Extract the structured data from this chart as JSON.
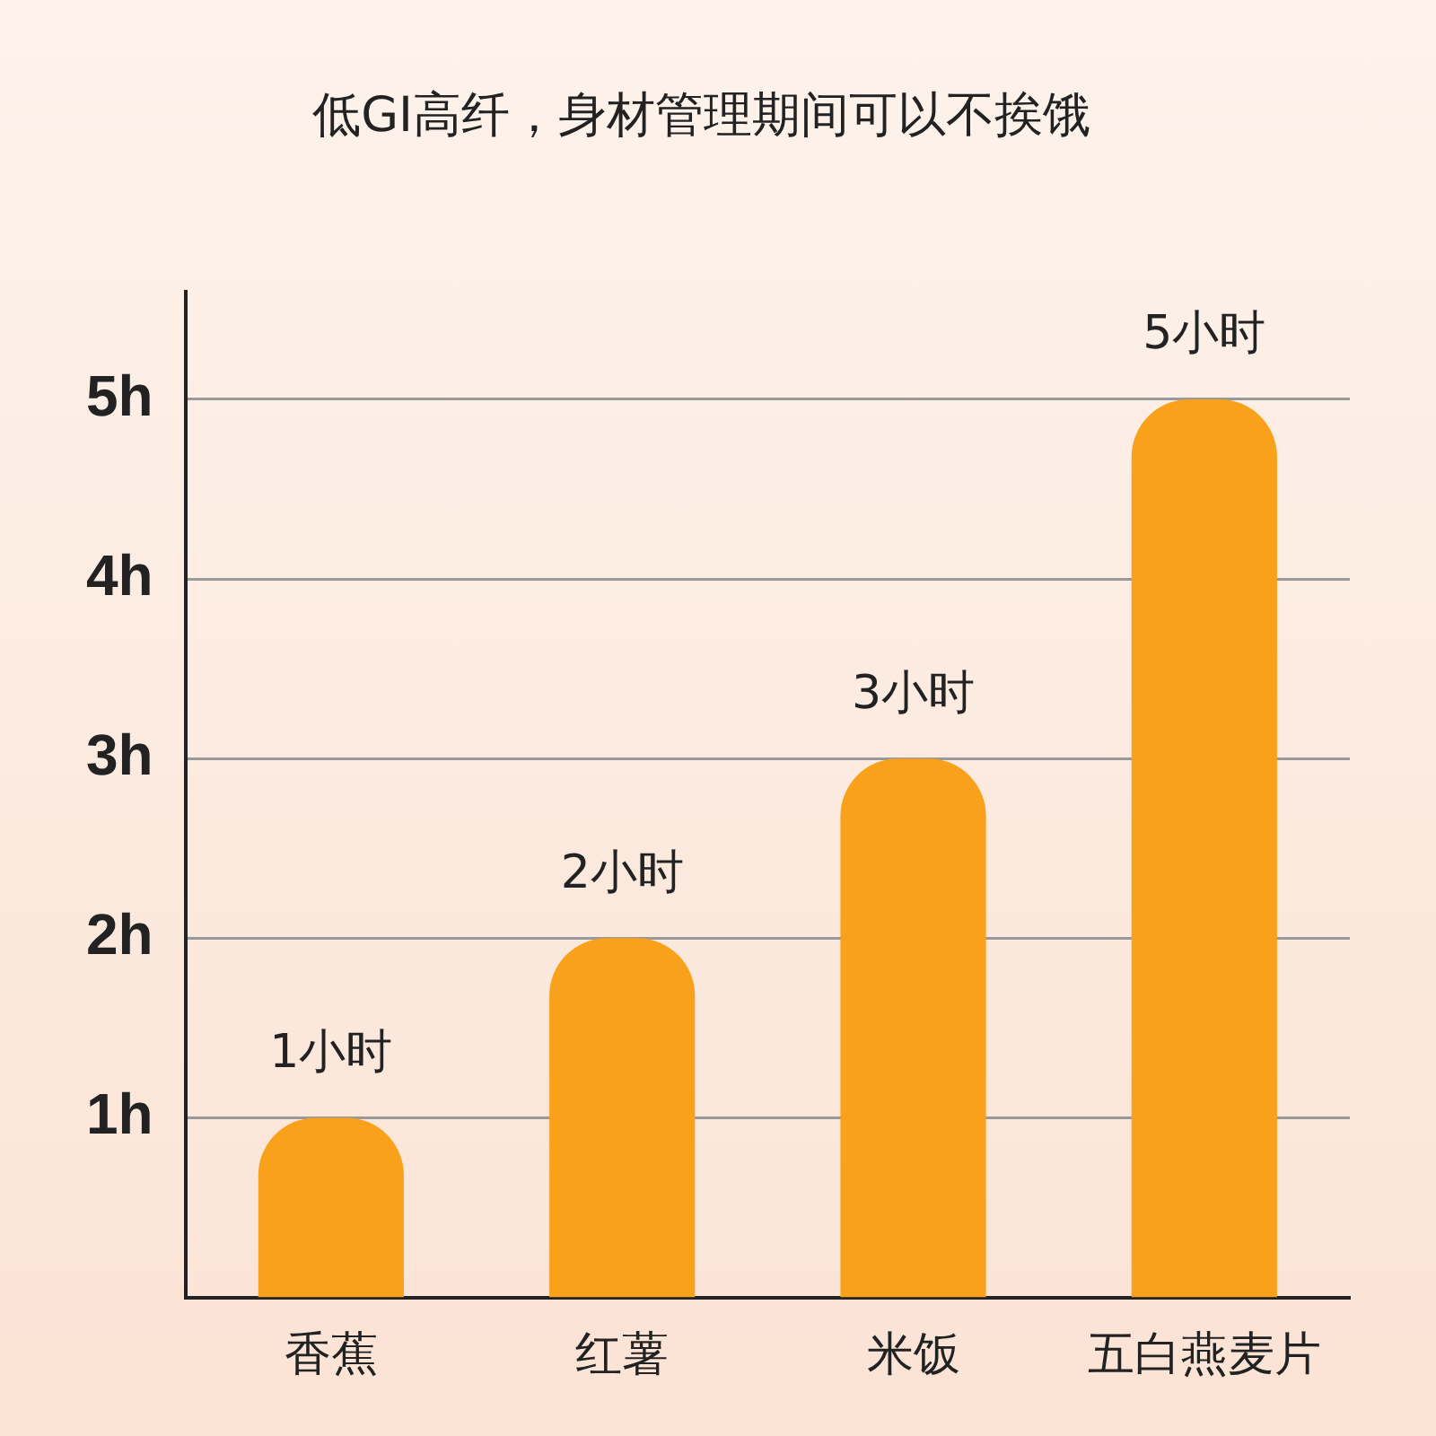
{
  "chart_data": {
    "type": "bar",
    "title": "低GI高纤，身材管理期间可以不挨饿",
    "categories": [
      "香蕉",
      "红薯",
      "米饭",
      "五白燕麦片"
    ],
    "values": [
      1,
      2,
      3,
      5
    ],
    "color": "#f9a11b",
    "value_labels": [
      "1小时",
      "2小时",
      "3小时",
      "5小时"
    ],
    "ylim": [
      0,
      5.6
    ],
    "yticks": [
      {
        "value": 1,
        "label": "1h"
      },
      {
        "value": 2,
        "label": "2h"
      },
      {
        "value": 3,
        "label": "3h"
      },
      {
        "value": 4,
        "label": "4h"
      },
      {
        "value": 5,
        "label": "5h"
      }
    ],
    "grid": "y",
    "legend": false
  }
}
